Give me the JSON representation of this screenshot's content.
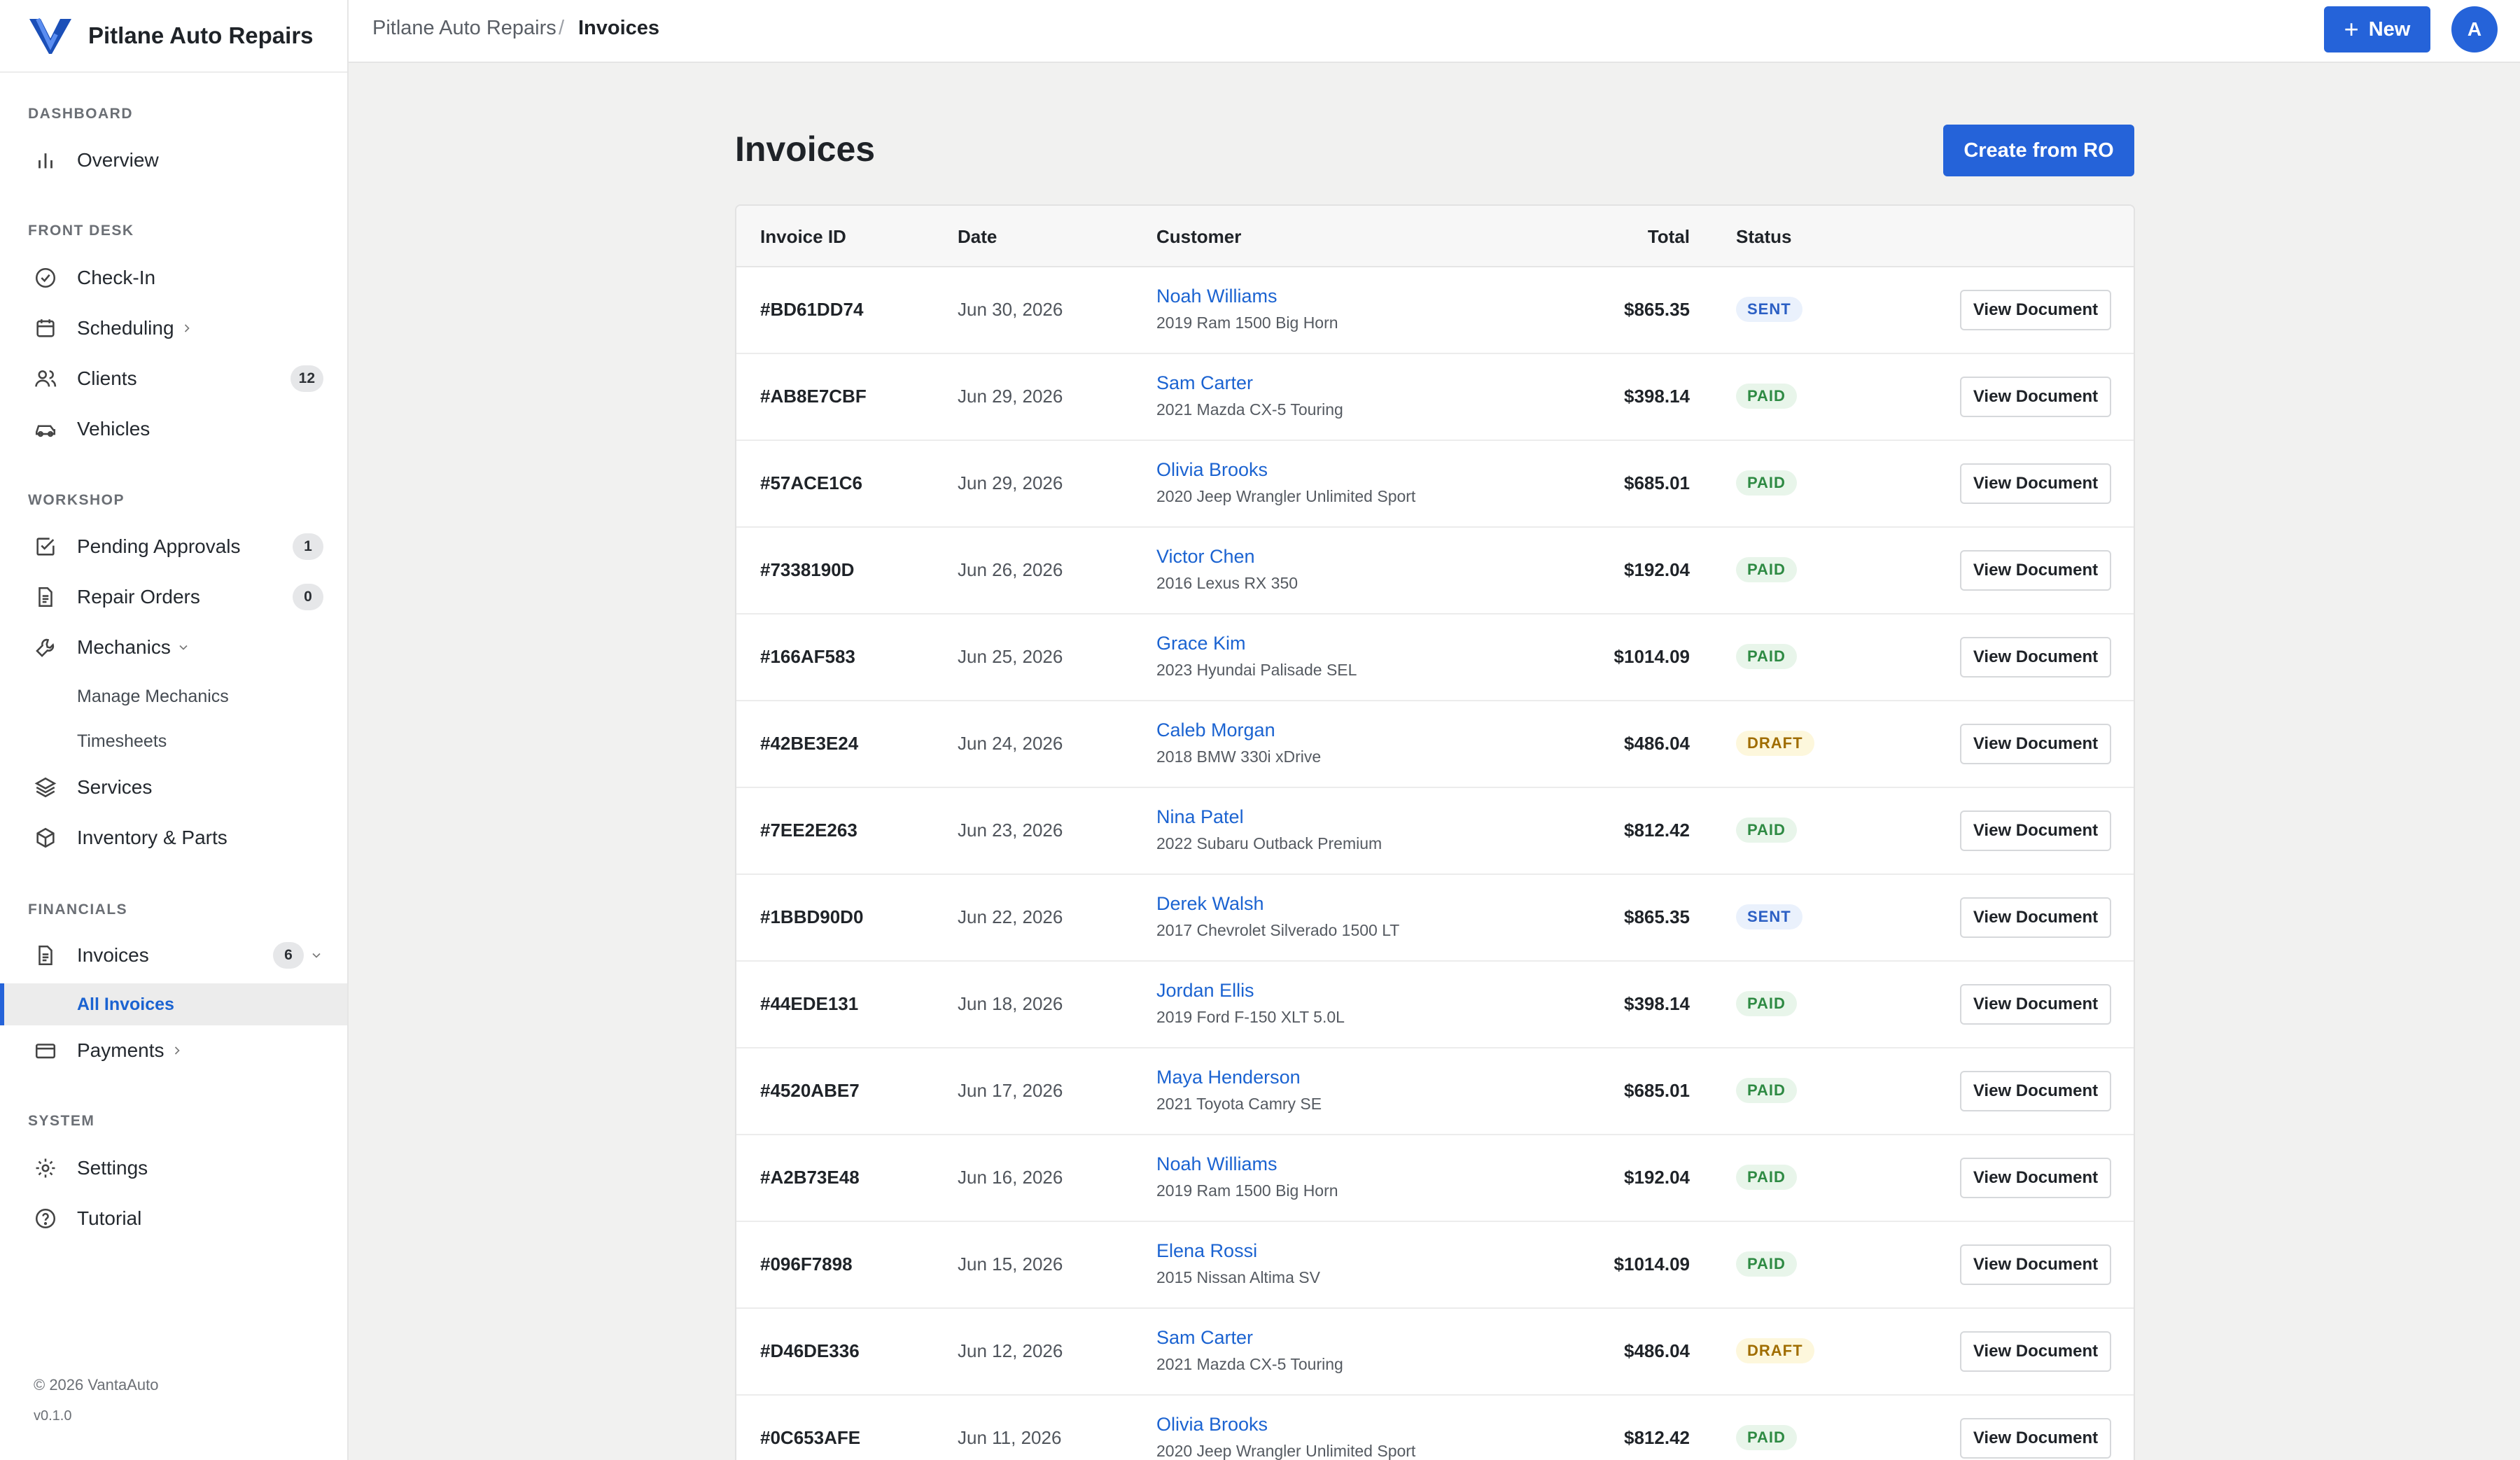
{
  "brand": {
    "name": "Pitlane Auto Repairs"
  },
  "topbar": {
    "breadcrumb_root": "Pitlane Auto Repairs",
    "breadcrumb_sep": "/",
    "breadcrumb_current": "Invoices",
    "new_label": "New",
    "avatar_initial": "A"
  },
  "sidebar": {
    "sections": {
      "dashboard": "DASHBOARD",
      "front_desk": "FRONT DESK",
      "workshop": "WORKSHOP",
      "financials": "FINANCIALS",
      "system": "SYSTEM"
    },
    "items": {
      "overview": "Overview",
      "check_in": "Check-In",
      "scheduling": "Scheduling",
      "clients": "Clients",
      "clients_count": "12",
      "vehicles": "Vehicles",
      "pending_approvals": "Pending Approvals",
      "pending_count": "1",
      "repair_orders": "Repair Orders",
      "repair_count": "0",
      "mechanics": "Mechanics",
      "manage_mechanics": "Manage Mechanics",
      "timesheets": "Timesheets",
      "services": "Services",
      "inventory": "Inventory & Parts",
      "invoices": "Invoices",
      "invoices_count": "6",
      "all_invoices": "All Invoices",
      "payments": "Payments",
      "settings": "Settings",
      "tutorial": "Tutorial"
    },
    "footer": {
      "copyright": "© 2026 VantaAuto",
      "version": "v0.1.0"
    }
  },
  "main": {
    "title": "Invoices",
    "create_label": "Create from RO",
    "columns": {
      "id": "Invoice ID",
      "date": "Date",
      "customer": "Customer",
      "total": "Total",
      "status": "Status"
    },
    "view_label": "View Document",
    "rows": [
      {
        "id": "#BD61DD74",
        "date": "Jun 30, 2026",
        "customer": "Noah Williams",
        "vehicle": "2019 Ram 1500 Big Horn",
        "total": "$865.35",
        "status": "SENT"
      },
      {
        "id": "#AB8E7CBF",
        "date": "Jun 29, 2026",
        "customer": "Sam Carter",
        "vehicle": "2021 Mazda CX-5 Touring",
        "total": "$398.14",
        "status": "PAID"
      },
      {
        "id": "#57ACE1C6",
        "date": "Jun 29, 2026",
        "customer": "Olivia Brooks",
        "vehicle": "2020 Jeep Wrangler Unlimited Sport",
        "total": "$685.01",
        "status": "PAID"
      },
      {
        "id": "#7338190D",
        "date": "Jun 26, 2026",
        "customer": "Victor Chen",
        "vehicle": "2016 Lexus RX 350",
        "total": "$192.04",
        "status": "PAID"
      },
      {
        "id": "#166AF583",
        "date": "Jun 25, 2026",
        "customer": "Grace Kim",
        "vehicle": "2023 Hyundai Palisade SEL",
        "total": "$1014.09",
        "status": "PAID"
      },
      {
        "id": "#42BE3E24",
        "date": "Jun 24, 2026",
        "customer": "Caleb Morgan",
        "vehicle": "2018 BMW 330i xDrive",
        "total": "$486.04",
        "status": "DRAFT"
      },
      {
        "id": "#7EE2E263",
        "date": "Jun 23, 2026",
        "customer": "Nina Patel",
        "vehicle": "2022 Subaru Outback Premium",
        "total": "$812.42",
        "status": "PAID"
      },
      {
        "id": "#1BBD90D0",
        "date": "Jun 22, 2026",
        "customer": "Derek Walsh",
        "vehicle": "2017 Chevrolet Silverado 1500 LT",
        "total": "$865.35",
        "status": "SENT"
      },
      {
        "id": "#44EDE131",
        "date": "Jun 18, 2026",
        "customer": "Jordan Ellis",
        "vehicle": "2019 Ford F-150 XLT 5.0L",
        "total": "$398.14",
        "status": "PAID"
      },
      {
        "id": "#4520ABE7",
        "date": "Jun 17, 2026",
        "customer": "Maya Henderson",
        "vehicle": "2021 Toyota Camry SE",
        "total": "$685.01",
        "status": "PAID"
      },
      {
        "id": "#A2B73E48",
        "date": "Jun 16, 2026",
        "customer": "Noah Williams",
        "vehicle": "2019 Ram 1500 Big Horn",
        "total": "$192.04",
        "status": "PAID"
      },
      {
        "id": "#096F7898",
        "date": "Jun 15, 2026",
        "customer": "Elena Rossi",
        "vehicle": "2015 Nissan Altima SV",
        "total": "$1014.09",
        "status": "PAID"
      },
      {
        "id": "#D46DE336",
        "date": "Jun 12, 2026",
        "customer": "Sam Carter",
        "vehicle": "2021 Mazda CX-5 Touring",
        "total": "$486.04",
        "status": "DRAFT"
      },
      {
        "id": "#0C653AFE",
        "date": "Jun 11, 2026",
        "customer": "Olivia Brooks",
        "vehicle": "2020 Jeep Wrangler Unlimited Sport",
        "total": "$812.42",
        "status": "PAID"
      }
    ]
  },
  "colors": {
    "accent": "#2563d9",
    "paid": "#2e8a43",
    "sent": "#2b5fc4",
    "draft": "#a06d00"
  }
}
